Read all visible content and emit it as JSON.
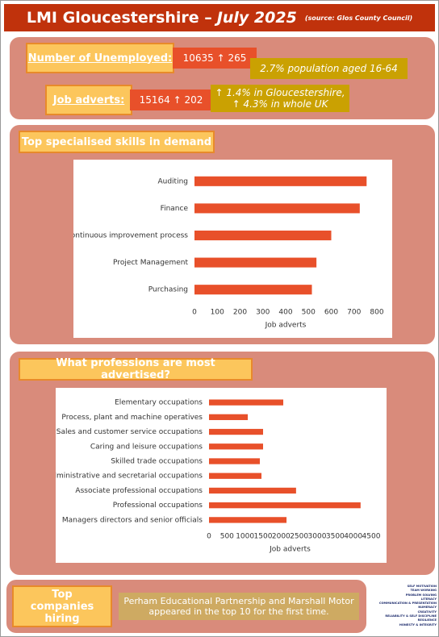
{
  "header": {
    "title": "LMI Gloucestershire –",
    "date": "July 2025",
    "source": "(source: Glos County Council)"
  },
  "unemployed": {
    "label": "Number of Unemployed:",
    "value": "10635 ↑ 265",
    "note": "2.7% population aged 16-64"
  },
  "adverts": {
    "label": "Job adverts:",
    "value": "15164 ↑ 202",
    "notes": [
      "↑ 1.4% in Gloucestershire,",
      "↑ 4.3% in whole UK"
    ]
  },
  "companies": {
    "label": "Top companies hiring",
    "text": "Perham Educational Partnership and Marshall Motor appeared in the top 10 for the first time."
  },
  "logo": [
    "SELF MOTIVATION",
    "TEAM WORKING",
    "PROBLEM SOLVING",
    "LITERACY",
    "COMMUNICATION & PRESENTATION",
    "NUMERACY",
    "CREATIVITY",
    "RELIABILITY & SELF DISCIPLINE",
    "RESILIENCE",
    "HONESTY & INTEGRITY"
  ],
  "chart_data": [
    {
      "type": "bar",
      "title": "Top specialised skills in demand",
      "x_label": "Job adverts",
      "color": "#e8502a",
      "categories": [
        "Auditing",
        "Finance",
        "Continuous improvement process",
        "Project Management",
        "Purchasing"
      ],
      "values": [
        755,
        725,
        600,
        535,
        515
      ],
      "xlim": [
        0,
        800
      ],
      "xticks": [
        0,
        100,
        200,
        300,
        400,
        500,
        600,
        700,
        800
      ]
    },
    {
      "type": "bar",
      "title": "What professions are most advertised?",
      "x_label": "Job adverts",
      "color": "#e8502a",
      "categories": [
        "Elementary occupations",
        "Process, plant and machine operatives",
        "Sales and customer service occupations",
        "Caring and leisure occupations",
        "Skilled trade occupations",
        "Administrative and secretarial occupations",
        "Associate professional occupations",
        "Professional occupations",
        "Managers directors and senior officials"
      ],
      "values": [
        2060,
        1075,
        1500,
        1500,
        1410,
        1455,
        2415,
        4205,
        2150
      ],
      "xlim": [
        0,
        4500
      ],
      "xticks": [
        0,
        500,
        1000,
        1500,
        2000,
        2500,
        3000,
        3500,
        4000,
        4500
      ]
    }
  ]
}
